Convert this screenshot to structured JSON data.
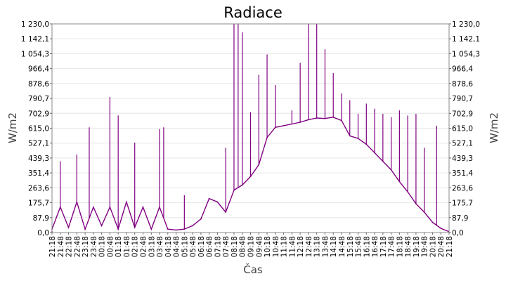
{
  "chart_data": {
    "type": "line",
    "title": "Radiace",
    "xlabel": "Čas",
    "ylabel": "W/m2",
    "ylabel_right": "W/m2",
    "ylim": [
      0,
      1230
    ],
    "y_ticks": [
      "0,0",
      "87,9",
      "175,7",
      "263,6",
      "351,4",
      "439,3",
      "527,1",
      "615,0",
      "702,9",
      "790,7",
      "878,6",
      "966,4",
      "1 054,3",
      "1 142,1",
      "1 230,0"
    ],
    "x_ticks": [
      "21:18",
      "21:48",
      "22:18",
      "22:48",
      "23:18",
      "23:48",
      "00:18",
      "00:48",
      "01:18",
      "01:48",
      "02:18",
      "02:48",
      "03:18",
      "03:48",
      "04:18",
      "04:48",
      "05:18",
      "05:48",
      "06:18",
      "06:48",
      "07:18",
      "07:48",
      "08:18",
      "08:48",
      "09:18",
      "09:48",
      "10:18",
      "10:48",
      "11:18",
      "11:48",
      "12:18",
      "12:48",
      "13:18",
      "13:48",
      "14:18",
      "14:48",
      "15:18",
      "15:48",
      "16:18",
      "16:48",
      "17:18",
      "17:48",
      "18:18",
      "18:48",
      "19:18",
      "19:48",
      "20:18",
      "20:48",
      "21:18"
    ],
    "grid": true,
    "legend": "none",
    "series": [
      {
        "color": "#800080",
        "points": [
          [
            "21:18",
            20
          ],
          [
            "21:48",
            150
          ],
          [
            "22:18",
            30
          ],
          [
            "22:48",
            180
          ],
          [
            "23:18",
            20
          ],
          [
            "23:48",
            150
          ],
          [
            "00:18",
            40
          ],
          [
            "00:48",
            150
          ],
          [
            "01:18",
            20
          ],
          [
            "01:48",
            180
          ],
          [
            "02:18",
            30
          ],
          [
            "02:48",
            150
          ],
          [
            "03:18",
            20
          ],
          [
            "03:48",
            150
          ],
          [
            "04:18",
            20
          ],
          [
            "04:48",
            15
          ],
          [
            "05:18",
            20
          ],
          [
            "05:48",
            40
          ],
          [
            "06:18",
            80
          ],
          [
            "06:48",
            200
          ],
          [
            "07:18",
            180
          ],
          [
            "07:48",
            120
          ],
          [
            "08:18",
            250
          ],
          [
            "08:48",
            280
          ],
          [
            "09:18",
            330
          ],
          [
            "09:48",
            400
          ],
          [
            "10:18",
            560
          ],
          [
            "10:48",
            620
          ],
          [
            "11:18",
            630
          ],
          [
            "11:48",
            640
          ],
          [
            "12:18",
            650
          ],
          [
            "12:48",
            665
          ],
          [
            "13:18",
            675
          ],
          [
            "13:48",
            672
          ],
          [
            "14:18",
            680
          ],
          [
            "14:48",
            660
          ],
          [
            "15:18",
            570
          ],
          [
            "15:48",
            555
          ],
          [
            "16:18",
            520
          ],
          [
            "16:48",
            470
          ],
          [
            "17:18",
            420
          ],
          [
            "17:48",
            370
          ],
          [
            "18:18",
            300
          ],
          [
            "18:48",
            240
          ],
          [
            "19:18",
            170
          ],
          [
            "19:48",
            120
          ],
          [
            "20:18",
            60
          ],
          [
            "20:48",
            25
          ],
          [
            "21:18",
            5
          ]
        ],
        "spikes": [
          [
            "21:48",
            420
          ],
          [
            "22:48",
            460
          ],
          [
            "23:33",
            620
          ],
          [
            "00:48",
            800
          ],
          [
            "01:18",
            690
          ],
          [
            "02:18",
            530
          ],
          [
            "03:48",
            610
          ],
          [
            "04:03",
            620
          ],
          [
            "05:18",
            220
          ],
          [
            "07:48",
            500
          ],
          [
            "08:18",
            1230
          ],
          [
            "08:33",
            1230
          ],
          [
            "08:48",
            1180
          ],
          [
            "09:18",
            710
          ],
          [
            "09:48",
            930
          ],
          [
            "10:18",
            1050
          ],
          [
            "10:48",
            870
          ],
          [
            "11:48",
            720
          ],
          [
            "12:18",
            1000
          ],
          [
            "12:48",
            1230
          ],
          [
            "13:18",
            1230
          ],
          [
            "13:48",
            1080
          ],
          [
            "14:18",
            940
          ],
          [
            "14:48",
            820
          ],
          [
            "15:18",
            780
          ],
          [
            "15:48",
            700
          ],
          [
            "16:18",
            760
          ],
          [
            "16:48",
            730
          ],
          [
            "17:18",
            700
          ],
          [
            "17:48",
            680
          ],
          [
            "18:18",
            720
          ],
          [
            "18:48",
            690
          ],
          [
            "19:18",
            700
          ],
          [
            "19:48",
            500
          ],
          [
            "20:33",
            630
          ]
        ]
      }
    ]
  }
}
